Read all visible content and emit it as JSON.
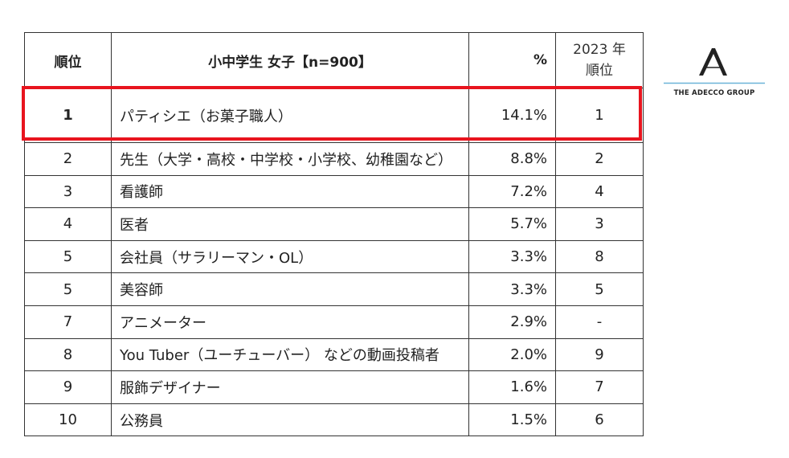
{
  "table": {
    "header": [
      "順位",
      "小中学生 女子【n=900】",
      "%",
      [
        "2023 年",
        "順位"
      ]
    ],
    "rows": [
      [
        "1",
        "パティシエ（お菓子職人）",
        "14.1%",
        "1"
      ],
      [
        "2",
        "先生（大学・高校・中学校・小学校、幼稚園など）",
        "8.8%",
        "2"
      ],
      [
        "3",
        "看護師",
        "7.2%",
        "4"
      ],
      [
        "4",
        "医者",
        "5.7%",
        "3"
      ],
      [
        "5",
        "会社員（サラリーマン・OL）",
        "3.3%",
        "8"
      ],
      [
        "5",
        "美容師",
        "3.3%",
        "5"
      ],
      [
        "7",
        "アニメーター",
        "2.9%",
        "-"
      ],
      [
        "8",
        "You Tuber（ユーチューバー） などの動画投稿者",
        "2.0%",
        "9"
      ],
      [
        "9",
        "服飾デザイナー",
        "1.6%",
        "7"
      ],
      [
        "10",
        "公務員",
        "1.5%",
        "6"
      ]
    ]
  },
  "logo": {
    "text": "THE ADECCO GROUP"
  }
}
